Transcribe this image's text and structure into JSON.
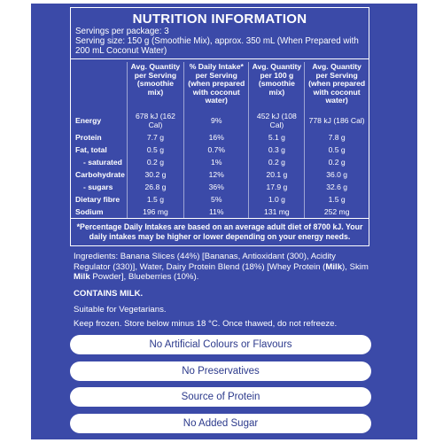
{
  "title": "NUTRITION INFORMATION",
  "servings_per_package": "Servings per package: 3",
  "serving_size": "Serving size: 150 g (Smoothie Mix), approx. 350 mL (When Prepared with 200 mL Coconut Water)",
  "table": {
    "header": [
      "Avg. Quantity per Serving (smoothie mix)",
      "% Daily Intake* per Serving (when prepared with coconut water)",
      "Avg. Quantity per 100 g (smoothie mix)",
      "Avg. Quantity per Serving (when prepared with coconut water)"
    ],
    "rows": [
      [
        "Energy",
        "678 kJ (162 Cal)",
        "9%",
        "452 kJ (108 Cal)",
        "778 kJ (186 Cal)"
      ],
      [
        "Protein",
        "7.7 g",
        "16%",
        "5.1 g",
        "7.8 g"
      ],
      [
        "Fat, total",
        "0.5 g",
        "0.7%",
        "0.3 g",
        "0.5 g"
      ],
      [
        "- saturated",
        "0.2 g",
        "1%",
        "0.2 g",
        "0.2 g"
      ],
      [
        "Carbohydrate",
        "30.2 g",
        "12%",
        "20.1 g",
        "36.0 g"
      ],
      [
        "- sugars",
        "26.8 g",
        "36%",
        "17.9 g",
        "32.6 g"
      ],
      [
        "Dietary fibre",
        "1.5 g",
        "5%",
        "1.0 g",
        "1.5 g"
      ],
      [
        "Sodium",
        "196 mg",
        "11%",
        "131 mg",
        "252 mg"
      ]
    ]
  },
  "note": "*Percentage Daily Intakes are based on an average adult diet of 8700 kJ. Your daily intakes may be higher or lower depending on your energy needs.",
  "ingredients": [
    "Ingredients: Banana Slices (44%) [Bananas, Antioxidant (300), Acidity Regulator (330)], Water, Dairy Protein Blend (18%) [Whey Protein (",
    "Milk",
    "), Skim ",
    "Milk",
    " Powder], Blueberries (10%)."
  ],
  "contains": "CONTAINS MILK.",
  "vegetarian": "Suitable for Vegetarians.",
  "storage": "Keep frozen. Store below minus 18 °C. Once thawed, do not refreeze.",
  "claims": [
    "No Artificial Colours or Flavours",
    "No Preservatives",
    "Source of Protein",
    "No Added Sugar"
  ]
}
